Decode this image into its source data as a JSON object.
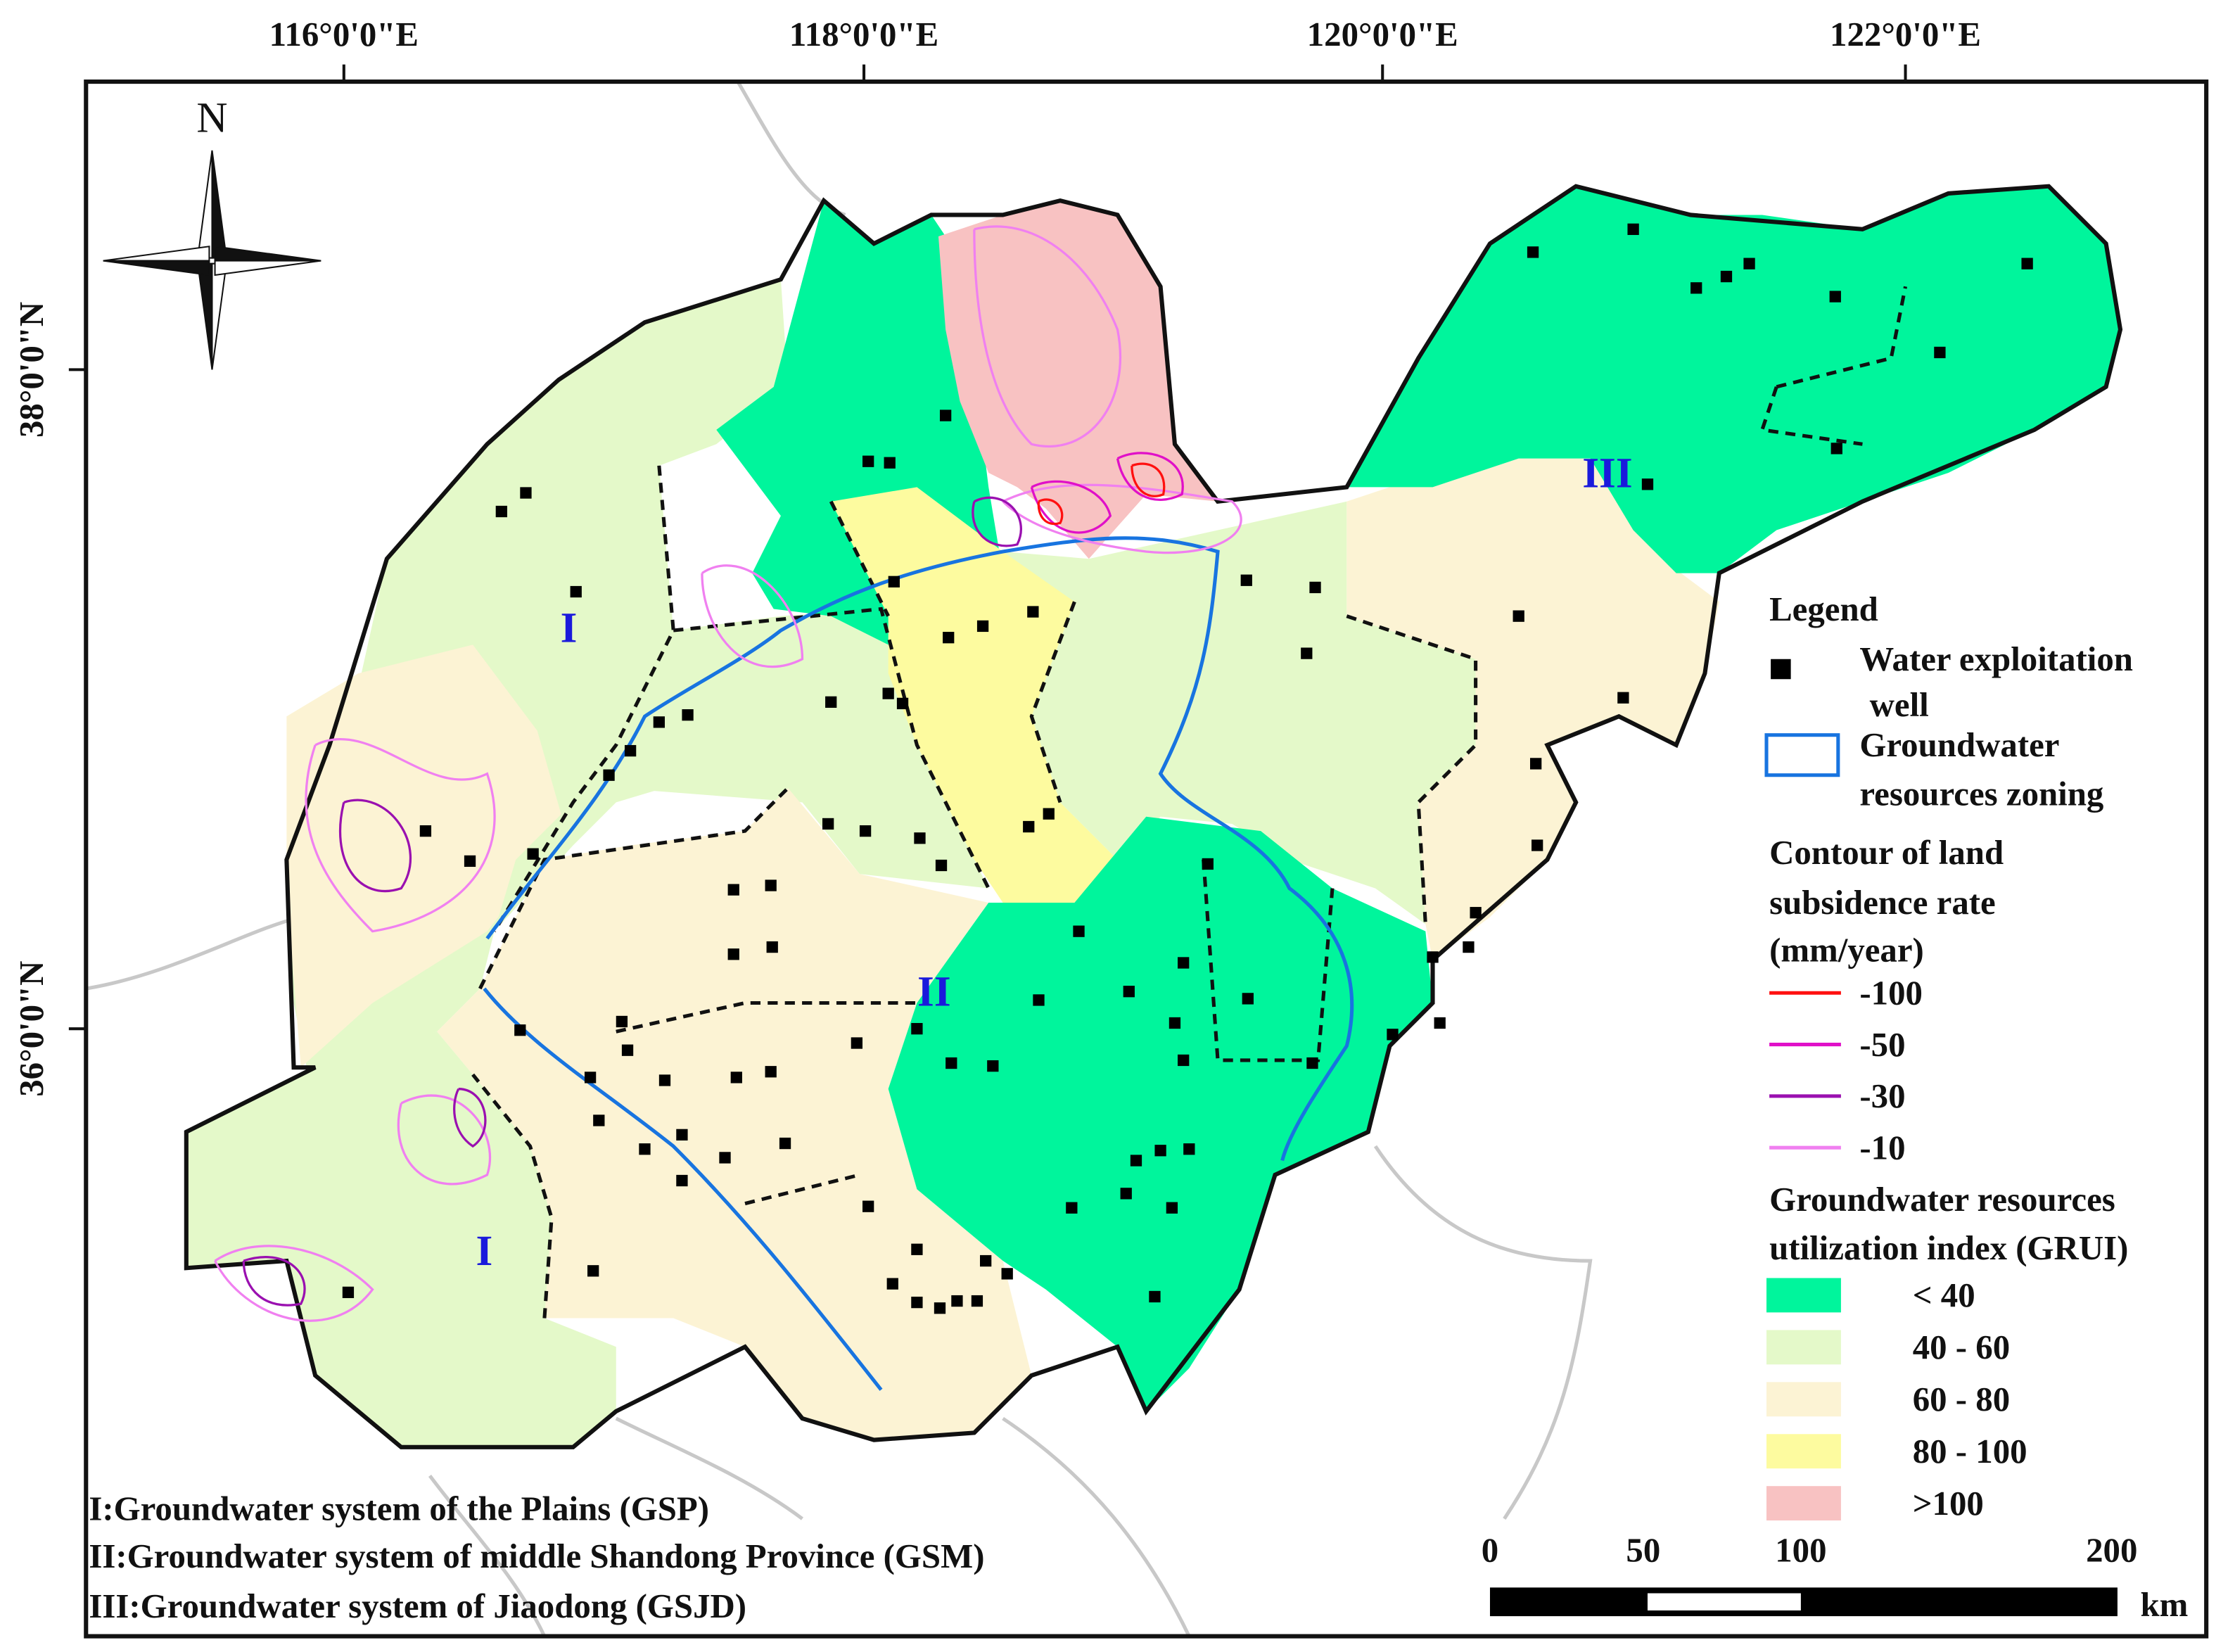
{
  "coordinates": {
    "longitude": [
      "116°0'0\"E",
      "118°0'0\"E",
      "120°0'0\"E",
      "122°0'0\"E"
    ],
    "latitude": [
      "38°0'0\"N",
      "36°0'0\"N"
    ]
  },
  "north_arrow": "N",
  "zone_labels": [
    "I",
    "II",
    "III",
    "I"
  ],
  "legend": {
    "title": "Legend",
    "well": {
      "lines": [
        "Water exploitation",
        "well"
      ]
    },
    "zoning": {
      "lines": [
        "Groundwater",
        "resources zoning"
      ],
      "color": "#1874e0"
    },
    "contour": {
      "title_lines": [
        "Contour of land",
        "subsidence rate",
        "(mm/year)"
      ],
      "items": [
        {
          "label": "-100",
          "color": "#ff1010"
        },
        {
          "label": "-50",
          "color": "#e010c8"
        },
        {
          "label": "-30",
          "color": "#9a10b0"
        },
        {
          "label": "-10",
          "color": "#f080f0"
        }
      ]
    },
    "grui": {
      "title_lines": [
        "Groundwater resources",
        "utilization index (GRUI)"
      ],
      "classes": [
        {
          "label": "< 40",
          "color": "#00f59c"
        },
        {
          "label": "40 - 60",
          "color": "#e4f9c9"
        },
        {
          "label": "60 - 80",
          "color": "#fcf3d4"
        },
        {
          "label": "80 - 100",
          "color": "#fdfb9f"
        },
        {
          "label": ">100",
          "color": "#f8c2c2"
        }
      ]
    }
  },
  "notes": [
    "I:Groundwater system of the Plains (GSP)",
    "II:Groundwater system of middle Shandong Province (GSM)",
    "III:Groundwater system of Jiaodong (GSJD)"
  ],
  "scale_bar": {
    "labels": [
      "0",
      "50",
      "100",
      "200"
    ],
    "unit": "km"
  }
}
